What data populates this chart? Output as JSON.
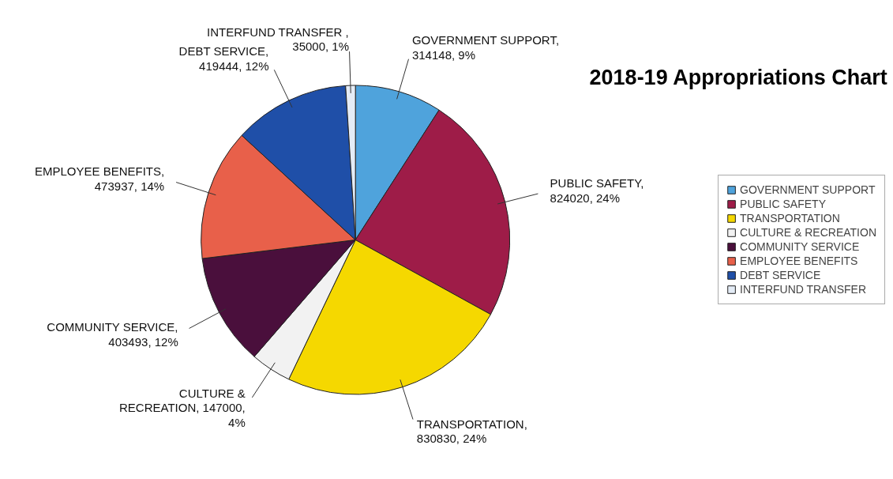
{
  "chart_data": {
    "type": "pie",
    "title": "2018-19 Appropriations Chart",
    "categories": [
      "GOVERNMENT SUPPORT",
      "PUBLIC SAFETY",
      "TRANSPORTATION",
      "CULTURE & RECREATION",
      "COMMUNITY SERVICE",
      "EMPLOYEE BENEFITS",
      "DEBT SERVICE",
      "INTERFUND TRANSFER"
    ],
    "values": [
      314148,
      824020,
      830830,
      147000,
      403493,
      473937,
      419444,
      35000
    ],
    "colors": [
      "#4fa3dc",
      "#9e1c48",
      "#f5d800",
      "#f2f2f2",
      "#4a0f3c",
      "#e8604a",
      "#1f4fa8",
      "#e4ecf6"
    ],
    "value_labels": [
      "GOVERNMENT SUPPORT, 314148, 9%",
      "PUBLIC SAFETY, 824020, 24%",
      "TRANSPORTATION, 830830, 24%",
      "CULTURE & RECREATION, 147000, 4%",
      "COMMUNITY SERVICE, 403493, 12%",
      "EMPLOYEE BENEFITS, 473937, 14%",
      "DEBT SERVICE, 419444, 12%",
      "INTERFUND TRANSFER , 35000, 1%"
    ],
    "legend": "right"
  }
}
